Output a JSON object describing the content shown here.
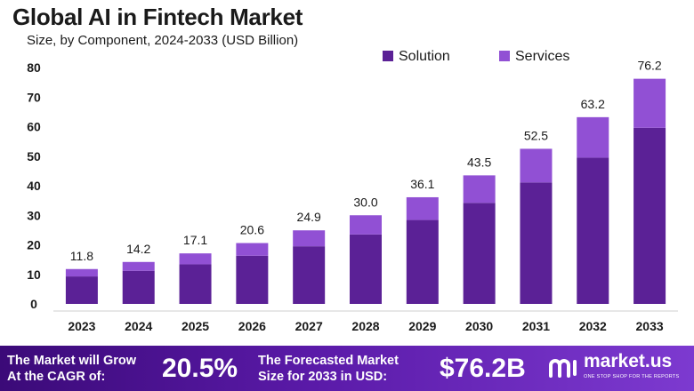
{
  "header": {
    "title": "Global AI in Fintech Market",
    "subtitle": "Size, by Component, 2024-2033 (USD Billion)"
  },
  "colors": {
    "solution": "#5b2196",
    "services": "#9150d4",
    "banner_start": "#3b0a78",
    "banner_end": "#7d3ad0"
  },
  "chart_data": {
    "type": "bar",
    "stacked": true,
    "categories": [
      "2023",
      "2024",
      "2025",
      "2026",
      "2027",
      "2028",
      "2029",
      "2030",
      "2031",
      "2032",
      "2033"
    ],
    "series": [
      {
        "name": "Solution",
        "values": [
          9.3,
          11.2,
          13.4,
          16.3,
          19.5,
          23.5,
          28.4,
          34.2,
          41.1,
          49.5,
          59.6
        ]
      },
      {
        "name": "Services",
        "values": [
          2.5,
          3.0,
          3.7,
          4.3,
          5.4,
          6.5,
          7.7,
          9.3,
          11.4,
          13.7,
          16.6
        ]
      }
    ],
    "totals": [
      "11.8",
      "14.2",
      "17.1",
      "20.6",
      "24.9",
      "30.0",
      "36.1",
      "43.5",
      "52.5",
      "63.2",
      "76.2"
    ],
    "ylim": [
      0,
      80
    ],
    "yticks": [
      "0",
      "10",
      "20",
      "30",
      "40",
      "50",
      "60",
      "70",
      "80"
    ],
    "legend_position": "top-right",
    "grid": false
  },
  "banner": {
    "cagr_line1": "The Market will Grow",
    "cagr_line2": "At the CAGR of:",
    "cagr_value": "20.5%",
    "forecast_line1": "The Forecasted Market",
    "forecast_line2": "Size for 2033 in USD:",
    "forecast_value": "$76.2B",
    "logo_text": "market.us",
    "logo_tagline": "ONE STOP SHOP FOR THE REPORTS"
  }
}
